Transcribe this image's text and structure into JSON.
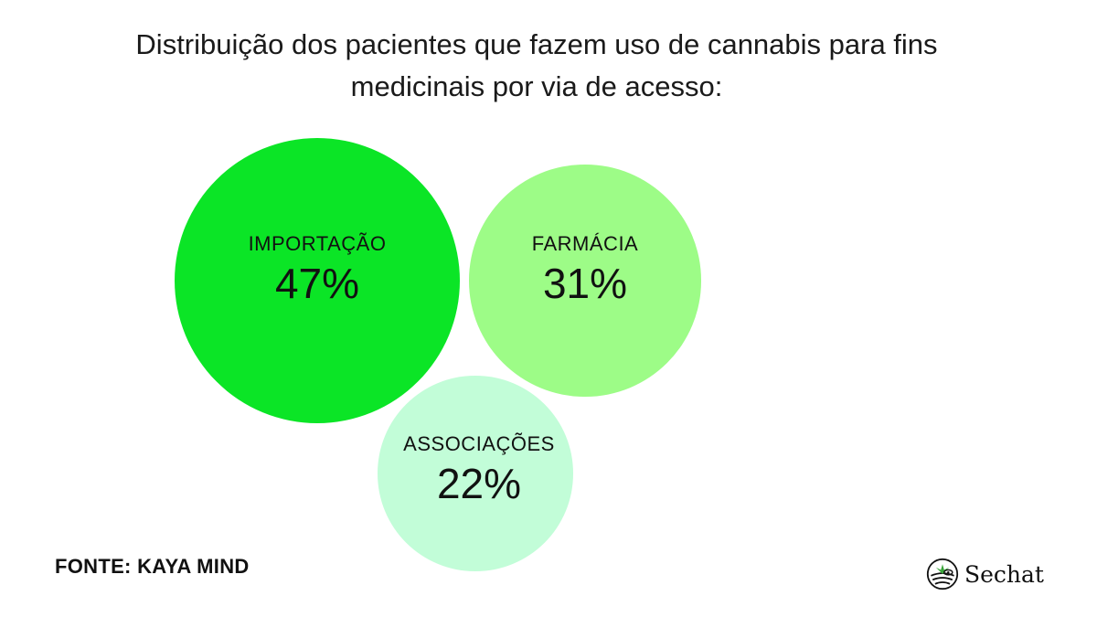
{
  "title_lines": [
    "Distribuição dos pacientes que fazem uso de cannabis para fins",
    "medicinais por via de acesso:"
  ],
  "chart_data": {
    "type": "bubble",
    "title": "Distribuição dos pacientes que fazem uso de cannabis para fins medicinais por via de acesso:",
    "categories": [
      "IMPORTAÇÃO",
      "FARMÁCIA",
      "ASSOCIAÇÕES"
    ],
    "values": [
      47,
      31,
      22
    ],
    "value_labels": [
      "47%",
      "31%",
      "22%"
    ],
    "unit": "%",
    "colors": [
      "#0be526",
      "#9dfc87",
      "#c2fdd8"
    ]
  },
  "source": "FONTE: KAYA MIND",
  "brand": {
    "name": "Sechat",
    "logo_icon": "sechat-logo-icon"
  }
}
